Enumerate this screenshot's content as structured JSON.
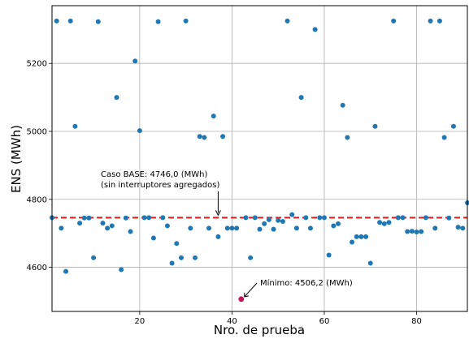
{
  "chart_data": {
    "type": "scatter",
    "title": "",
    "xlabel": "Nro. de prueba",
    "ylabel": "ENS (MWh)",
    "xlim": [
      1,
      91
    ],
    "ylim": [
      4470,
      5370
    ],
    "xticks": [
      20,
      40,
      60,
      80
    ],
    "yticks": [
      4600,
      4800,
      5000,
      5200
    ],
    "grid": true,
    "point_color": "#1f77b4",
    "highlight_color": "#c2185b",
    "reference_line": {
      "value": 4746.0,
      "color": "#e41a1c",
      "style": "dashed"
    },
    "annotations": [
      {
        "text_lines": [
          "Caso BASE: 4746,0 (MWh)",
          "(sin interruptores agregados)"
        ],
        "x": 37,
        "y": 4746.0
      },
      {
        "text_lines": [
          "Mínimo: 4506,2 (MWh)"
        ],
        "x": 42,
        "y": 4506.2
      }
    ],
    "highlight_point": {
      "x": 42,
      "y": 4506.2
    },
    "points": [
      [
        1,
        4746
      ],
      [
        2,
        5325
      ],
      [
        3,
        4715
      ],
      [
        4,
        4588
      ],
      [
        5,
        5325
      ],
      [
        6,
        5015
      ],
      [
        7,
        4730
      ],
      [
        8,
        4745
      ],
      [
        9,
        4745
      ],
      [
        10,
        4628
      ],
      [
        11,
        5323
      ],
      [
        12,
        4730
      ],
      [
        13,
        4715
      ],
      [
        14,
        4722
      ],
      [
        15,
        5100
      ],
      [
        16,
        4593
      ],
      [
        17,
        4745
      ],
      [
        18,
        4705
      ],
      [
        19,
        5207
      ],
      [
        20,
        5002
      ],
      [
        21,
        4746
      ],
      [
        22,
        4746
      ],
      [
        23,
        4686
      ],
      [
        24,
        5323
      ],
      [
        25,
        4746
      ],
      [
        26,
        4722
      ],
      [
        27,
        4612
      ],
      [
        28,
        4670
      ],
      [
        29,
        4628
      ],
      [
        30,
        5325
      ],
      [
        31,
        4715
      ],
      [
        32,
        4628
      ],
      [
        33,
        4985
      ],
      [
        34,
        4982
      ],
      [
        35,
        4715
      ],
      [
        36,
        5045
      ],
      [
        37,
        4690
      ],
      [
        38,
        4985
      ],
      [
        39,
        4715
      ],
      [
        40,
        4715
      ],
      [
        41,
        4715
      ],
      [
        42,
        4506.2
      ],
      [
        43,
        4746
      ],
      [
        44,
        4628
      ],
      [
        45,
        4746
      ],
      [
        46,
        4712
      ],
      [
        47,
        4728
      ],
      [
        48,
        4740
      ],
      [
        49,
        4712
      ],
      [
        50,
        4738
      ],
      [
        51,
        4735
      ],
      [
        52,
        5325
      ],
      [
        53,
        4755
      ],
      [
        54,
        4715
      ],
      [
        55,
        5100
      ],
      [
        56,
        4746
      ],
      [
        57,
        4715
      ],
      [
        58,
        5300
      ],
      [
        59,
        4746
      ],
      [
        60,
        4746
      ],
      [
        61,
        4636
      ],
      [
        62,
        4722
      ],
      [
        63,
        4728
      ],
      [
        64,
        5077
      ],
      [
        65,
        4982
      ],
      [
        66,
        4674
      ],
      [
        67,
        4690
      ],
      [
        68,
        4690
      ],
      [
        69,
        4690
      ],
      [
        70,
        4612
      ],
      [
        71,
        5015
      ],
      [
        72,
        4732
      ],
      [
        73,
        4728
      ],
      [
        74,
        4732
      ],
      [
        75,
        5325
      ],
      [
        76,
        4746
      ],
      [
        77,
        4746
      ],
      [
        78,
        4705
      ],
      [
        79,
        4706
      ],
      [
        80,
        4704
      ],
      [
        81,
        4705
      ],
      [
        82,
        4746
      ],
      [
        83,
        5325
      ],
      [
        84,
        4715
      ],
      [
        85,
        5325
      ],
      [
        86,
        4982
      ],
      [
        87,
        4745
      ],
      [
        88,
        5015
      ],
      [
        89,
        4718
      ],
      [
        90,
        4715
      ],
      [
        91,
        4790
      ]
    ]
  }
}
